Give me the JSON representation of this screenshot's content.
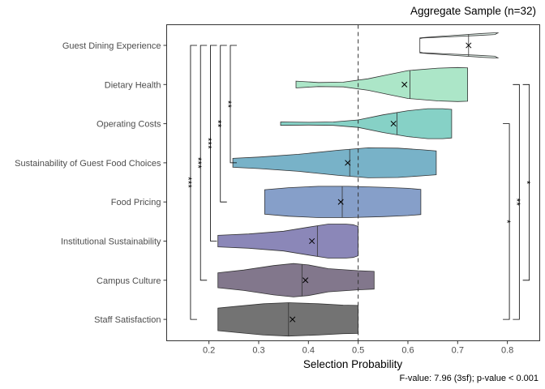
{
  "chart_data": {
    "type": "violin",
    "title": "Aggregate Sample (n=32)",
    "xlabel": "Selection Probability",
    "ylabel": "",
    "caption": "F-value: 7.96 (3sf); p-value < 0.001",
    "xlim": [
      0.115,
      0.865
    ],
    "xticks": [
      0.2,
      0.3,
      0.4,
      0.5,
      0.6,
      0.7,
      0.8
    ],
    "xtick_labels": [
      "0.2",
      "0.3",
      "0.4",
      "0.5",
      "0.6",
      "0.7",
      "0.8"
    ],
    "reference_line_x": 0.5,
    "grid": false,
    "legend": "none",
    "categories": [
      "Guest Dining Experience",
      "Dietary Health",
      "Operating Costs",
      "Sustainability of Guest Food Choices",
      "Food Pricing",
      "Institutional Sustainability",
      "Campus Culture",
      "Staff Satisfaction"
    ],
    "violins": [
      {
        "category": "Guest Dining Experience",
        "color": "#e6f7ee",
        "median": 0.722,
        "mean": 0.722,
        "profile": [
          [
            0.624,
            0.44
          ],
          [
            0.64,
            0.48
          ],
          [
            0.7,
            0.6
          ],
          [
            0.75,
            0.7
          ],
          [
            0.775,
            0.74
          ],
          [
            0.781,
            0.74
          ],
          [
            0.775,
            0.64
          ],
          [
            0.74,
            0.58
          ],
          [
            0.68,
            0.5
          ],
          [
            0.63,
            0.44
          ],
          [
            0.624,
            0.4
          ]
        ]
      },
      {
        "category": "Dietary Health",
        "color": "#a8e5c5",
        "median": 0.604,
        "mean": 0.593,
        "profile": [
          [
            0.375,
            0.2
          ],
          [
            0.42,
            0.12
          ],
          [
            0.47,
            0.14
          ],
          [
            0.52,
            0.34
          ],
          [
            0.56,
            0.58
          ],
          [
            0.6,
            0.82
          ],
          [
            0.66,
            0.96
          ],
          [
            0.7,
            1.0
          ],
          [
            0.72,
            0.98
          ]
        ]
      },
      {
        "category": "Operating Costs",
        "color": "#80cfc3",
        "median": 0.578,
        "mean": 0.571,
        "profile": [
          [
            0.344,
            0.1
          ],
          [
            0.4,
            0.08
          ],
          [
            0.45,
            0.1
          ],
          [
            0.5,
            0.22
          ],
          [
            0.55,
            0.52
          ],
          [
            0.6,
            0.76
          ],
          [
            0.64,
            0.88
          ],
          [
            0.67,
            0.88
          ],
          [
            0.688,
            0.84
          ]
        ]
      },
      {
        "category": "Sustainability of Guest Food Choices",
        "color": "#71aec5",
        "median": 0.483,
        "mean": 0.479,
        "profile": [
          [
            0.248,
            0.26
          ],
          [
            0.3,
            0.34
          ],
          [
            0.38,
            0.5
          ],
          [
            0.46,
            0.74
          ],
          [
            0.52,
            0.88
          ],
          [
            0.58,
            0.86
          ],
          [
            0.63,
            0.76
          ],
          [
            0.657,
            0.7
          ]
        ]
      },
      {
        "category": "Food Pricing",
        "color": "#7f9ac6",
        "median": 0.468,
        "mean": 0.465,
        "profile": [
          [
            0.312,
            0.72
          ],
          [
            0.36,
            0.84
          ],
          [
            0.42,
            0.92
          ],
          [
            0.48,
            0.92
          ],
          [
            0.55,
            0.86
          ],
          [
            0.6,
            0.8
          ],
          [
            0.626,
            0.74
          ]
        ]
      },
      {
        "category": "Institutional Sustainability",
        "color": "#8581b4",
        "median": 0.418,
        "mean": 0.407,
        "profile": [
          [
            0.218,
            0.34
          ],
          [
            0.28,
            0.42
          ],
          [
            0.35,
            0.58
          ],
          [
            0.4,
            0.82
          ],
          [
            0.44,
            1.0
          ],
          [
            0.475,
            1.0
          ],
          [
            0.49,
            0.96
          ],
          [
            0.5,
            0.86
          ]
        ]
      },
      {
        "category": "Campus Culture",
        "color": "#7b7086",
        "median": 0.387,
        "mean": 0.394,
        "profile": [
          [
            0.218,
            0.44
          ],
          [
            0.27,
            0.6
          ],
          [
            0.33,
            0.86
          ],
          [
            0.37,
            0.98
          ],
          [
            0.4,
            0.9
          ],
          [
            0.44,
            0.68
          ],
          [
            0.5,
            0.56
          ],
          [
            0.532,
            0.52
          ]
        ]
      },
      {
        "category": "Staff Satisfaction",
        "color": "#6b6b6b",
        "median": 0.36,
        "mean": 0.368,
        "profile": [
          [
            0.218,
            0.66
          ],
          [
            0.26,
            0.78
          ],
          [
            0.31,
            0.92
          ],
          [
            0.36,
            0.98
          ],
          [
            0.42,
            0.92
          ],
          [
            0.47,
            0.84
          ],
          [
            0.5,
            0.82
          ]
        ]
      }
    ],
    "comparisons": [
      {
        "from": "Guest Dining Experience",
        "to": "Staff Satisfaction",
        "label": "***",
        "side": "left",
        "x": 0.163
      },
      {
        "from": "Guest Dining Experience",
        "to": "Campus Culture",
        "label": "***",
        "side": "left",
        "x": 0.183
      },
      {
        "from": "Guest Dining Experience",
        "to": "Institutional Sustainability",
        "label": "***",
        "side": "left",
        "x": 0.203
      },
      {
        "from": "Guest Dining Experience",
        "to": "Food Pricing",
        "label": "**",
        "side": "left",
        "x": 0.223
      },
      {
        "from": "Guest Dining Experience",
        "to": "Sustainability of Guest Food Choices",
        "label": "**",
        "side": "left",
        "x": 0.243
      },
      {
        "from": "Operating Costs",
        "to": "Staff Satisfaction",
        "label": "*",
        "side": "right",
        "x": 0.804
      },
      {
        "from": "Dietary Health",
        "to": "Staff Satisfaction",
        "label": "**",
        "side": "right",
        "x": 0.824
      },
      {
        "from": "Dietary Health",
        "to": "Campus Culture",
        "label": "*",
        "side": "right",
        "x": 0.844
      }
    ]
  }
}
